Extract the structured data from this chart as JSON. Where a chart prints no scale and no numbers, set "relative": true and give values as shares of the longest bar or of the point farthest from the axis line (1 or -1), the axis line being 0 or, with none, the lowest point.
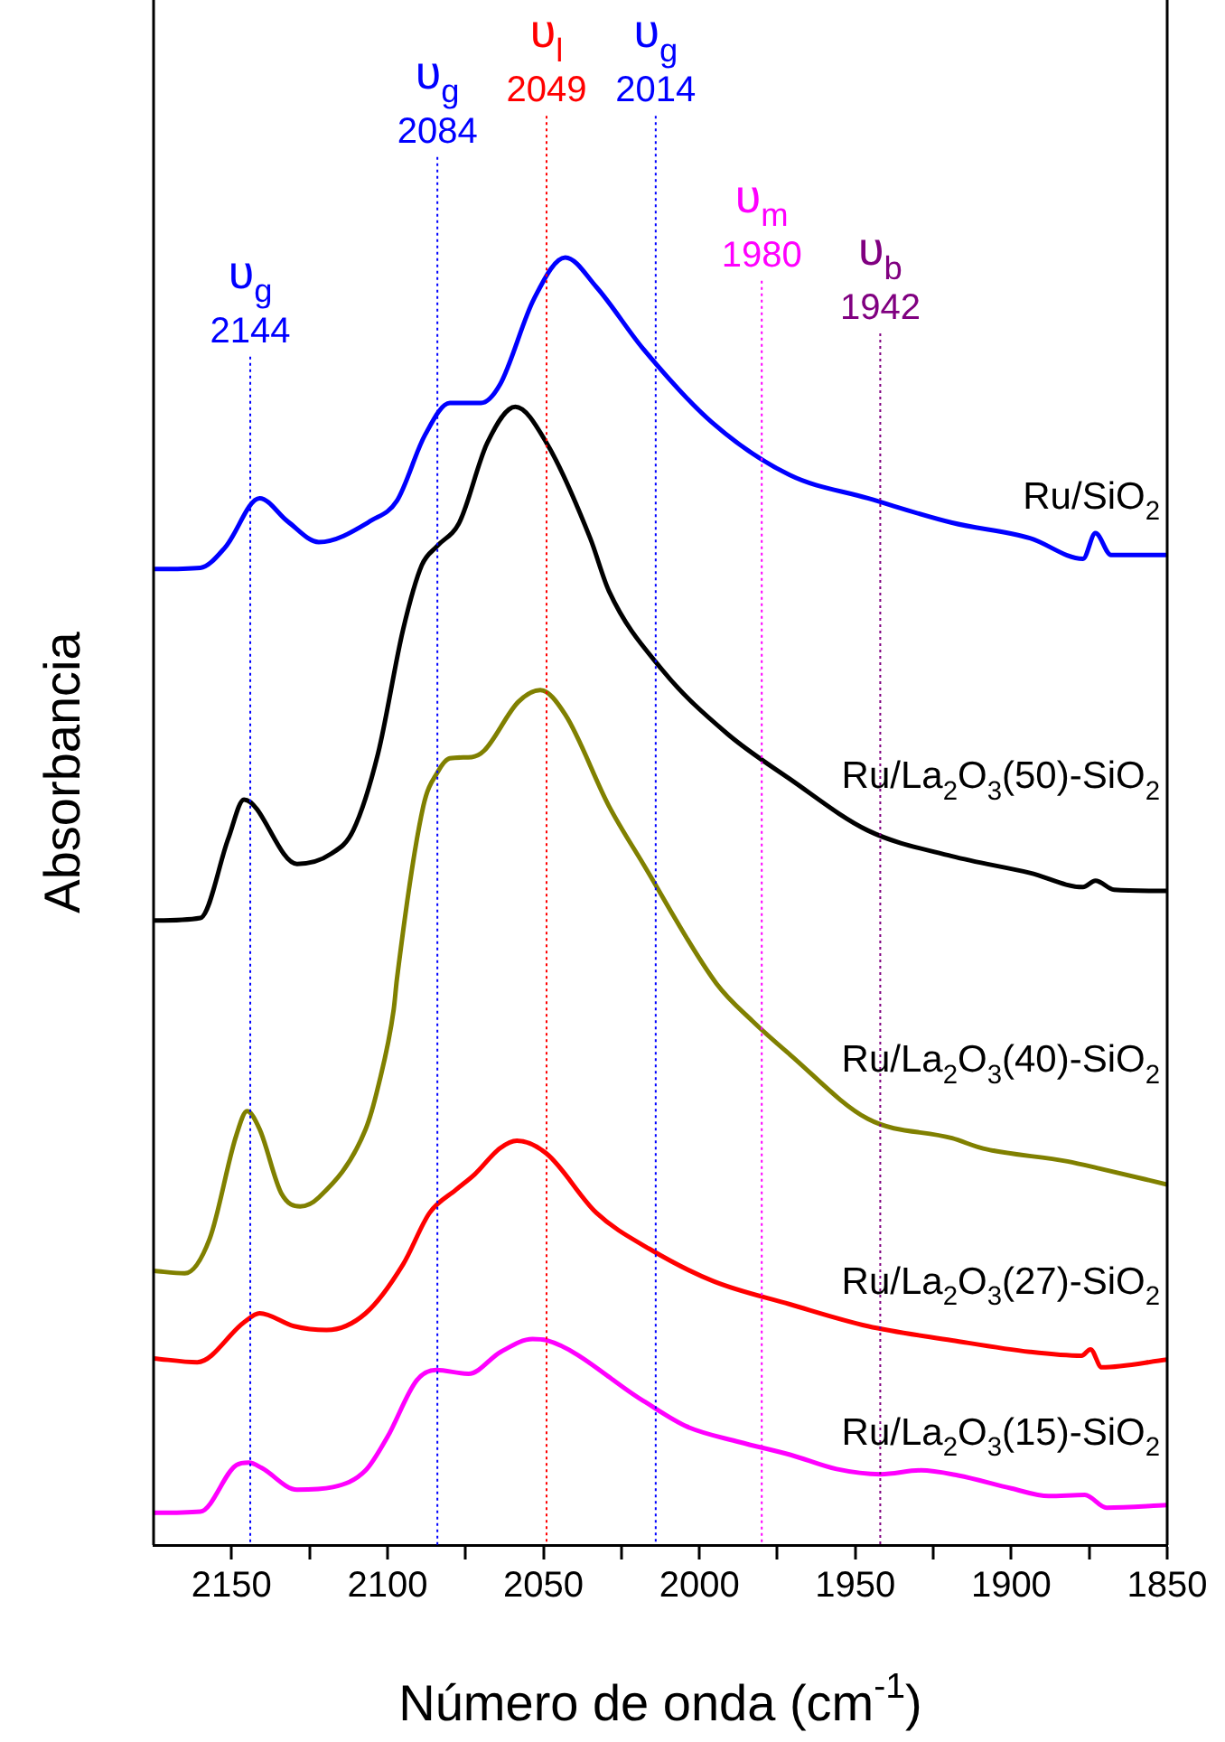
{
  "chart_data": {
    "type": "line",
    "relative": true,
    "xlabel": "Número de onda (cm$^{-1}$)",
    "ylabel": "Absorbancia",
    "xlim": [
      2175,
      1850
    ],
    "xticks": [
      2150,
      {
        "value": 2125,
        "label": null
      },
      2100,
      {
        "value": 2075,
        "label": null
      },
      2050,
      {
        "value": 2025,
        "label": null
      },
      2000,
      {
        "value": 1975,
        "label": null
      },
      1950,
      {
        "value": 1925,
        "label": null
      },
      1900,
      {
        "value": 1875,
        "label": null
      },
      1850
    ],
    "legend": false,
    "series": [
      {
        "name": "Ru/SiO$_{2}$",
        "color": "#0000ff",
        "x": [
          2175,
          2160,
          2152,
          2141,
          2132,
          2122,
          2105,
          2097,
          2088,
          2080,
          2070,
          2064,
          2053,
          2043,
          2033,
          2018,
          1996,
          1971,
          1946,
          1919,
          1894,
          1877,
          1873,
          1868,
          1850
        ],
        "values": [
          0.758,
          0.759,
          0.775,
          0.813,
          0.795,
          0.779,
          0.796,
          0.811,
          0.862,
          0.887,
          0.887,
          0.901,
          0.968,
          1.0,
          0.977,
          0.929,
          0.872,
          0.831,
          0.813,
          0.794,
          0.782,
          0.766,
          0.786,
          0.769,
          0.769
        ]
      },
      {
        "name": "Ru/La$_{2}$O$_{3}$(50)-SiO$_{2}$",
        "color": "#000000",
        "x": [
          2175,
          2160,
          2151,
          2146,
          2129,
          2118,
          2111,
          2103,
          2095,
          2089,
          2084,
          2077,
          2068,
          2059,
          2049,
          2035,
          2029,
          2012,
          1991,
          1971,
          1946,
          1919,
          1894,
          1877,
          1873,
          1867,
          1850
        ],
        "values": [
          0.485,
          0.487,
          0.549,
          0.579,
          0.529,
          0.537,
          0.555,
          0.615,
          0.711,
          0.761,
          0.776,
          0.794,
          0.856,
          0.884,
          0.856,
          0.782,
          0.741,
          0.68,
          0.63,
          0.595,
          0.555,
          0.535,
          0.522,
          0.511,
          0.516,
          0.509,
          0.508
        ]
      },
      {
        "name": "Ru/La$_{2}$O$_{3}$(40)-SiO$_{2}$",
        "color": "#808000",
        "x": [
          2175,
          2165,
          2157,
          2148.5,
          2145,
          2141,
          2134,
          2128,
          2122,
          2107,
          2103,
          2098,
          2097,
          2088.5,
          2084,
          2080,
          2073,
          2069,
          2058,
          2051,
          2043,
          2029,
          2018,
          1994.5,
          1983,
          1971,
          1946,
          1919,
          1909,
          1882,
          1871,
          1850
        ],
        "values": [
          0.213,
          0.211,
          0.238,
          0.318,
          0.337,
          0.323,
          0.273,
          0.263,
          0.27,
          0.323,
          0.356,
          0.416,
          0.439,
          0.574,
          0.6,
          0.611,
          0.612,
          0.617,
          0.655,
          0.664,
          0.645,
          0.574,
          0.529,
          0.436,
          0.407,
          0.381,
          0.331,
          0.316,
          0.308,
          0.298,
          0.292,
          0.28
        ]
      },
      {
        "name": "Ru/La$_{2}$O$_{3}$(27)-SiO$_{2}$",
        "color": "#ff0000",
        "x": [
          2175,
          2161,
          2146,
          2141,
          2130,
          2119.5,
          2107,
          2095,
          2086.5,
          2078,
          2072,
          2064,
          2058.5,
          2049,
          2033,
          2016,
          1995.6,
          1971,
          1946,
          1919,
          1894,
          1877.5,
          1874.6,
          1871,
          1850
        ],
        "values": [
          0.145,
          0.142,
          0.173,
          0.18,
          0.17,
          0.167,
          0.18,
          0.218,
          0.258,
          0.276,
          0.288,
          0.308,
          0.314,
          0.304,
          0.258,
          0.23,
          0.205,
          0.187,
          0.17,
          0.159,
          0.15,
          0.147,
          0.152,
          0.138,
          0.144
        ]
      },
      {
        "name": "Ru/La$_{2}$O$_{3}$(15)-SiO$_{2}$",
        "color": "#ff00ff",
        "x": [
          2175,
          2160,
          2148.5,
          2144.4,
          2140.4,
          2129,
          2117.5,
          2107,
          2100,
          2090.6,
          2084.4,
          2074,
          2063.7,
          2053.5,
          2049,
          2018,
          2004,
          1987.2,
          1970.7,
          1956,
          1941.8,
          1929,
          1917,
          1900,
          1888,
          1876.4,
          1869.4,
          1850
        ],
        "values": [
          0.025,
          0.026,
          0.062,
          0.064,
          0.06,
          0.043,
          0.045,
          0.058,
          0.084,
          0.128,
          0.136,
          0.133,
          0.15,
          0.16,
          0.159,
          0.112,
          0.092,
          0.08,
          0.07,
          0.059,
          0.055,
          0.058,
          0.054,
          0.044,
          0.038,
          0.039,
          0.029,
          0.031
        ]
      }
    ],
    "ref_lines": [
      {
        "axis": "x",
        "value": 2144,
        "label": "υ$_{g}$",
        "color": "#0000ff",
        "line_style": "dotted"
      },
      {
        "axis": "x",
        "value": 2084,
        "label": "υ$_{g}$",
        "color": "#0000ff",
        "line_style": "dotted"
      },
      {
        "axis": "x",
        "value": 2049,
        "label": "υ$_{l}$",
        "color": "#ff0000",
        "line_style": "dotted"
      },
      {
        "axis": "x",
        "value": 2014,
        "label": "υ$_{g}$",
        "color": "#0000ff",
        "line_style": "dotted"
      },
      {
        "axis": "x",
        "value": 1980,
        "label": "υ$_{m}$",
        "color": "#ff00ff",
        "line_style": "dotted"
      },
      {
        "axis": "x",
        "value": 1942,
        "label": "υ$_{b}$",
        "color": "#800080",
        "line_style": "dotted"
      }
    ],
    "annotations": [
      "2144",
      "2084",
      "2049",
      "2014",
      "1980",
      "1942"
    ]
  }
}
